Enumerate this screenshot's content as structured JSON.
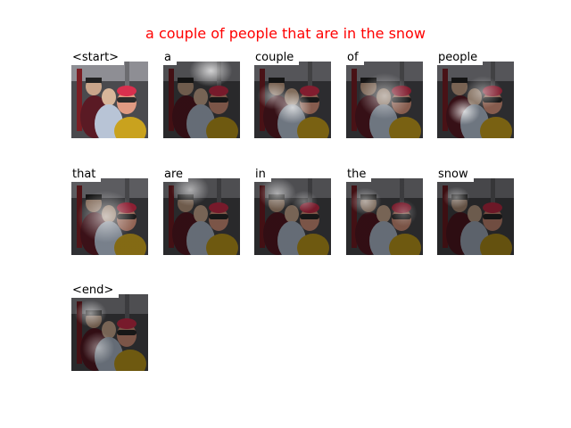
{
  "caption": "a couple of people that are in the snow",
  "caption_color": "#ff0000",
  "tokens": [
    "<start>",
    "a",
    "couple",
    "of",
    "people",
    "that",
    "are",
    "in",
    "the",
    "snow",
    "<end>"
  ]
}
